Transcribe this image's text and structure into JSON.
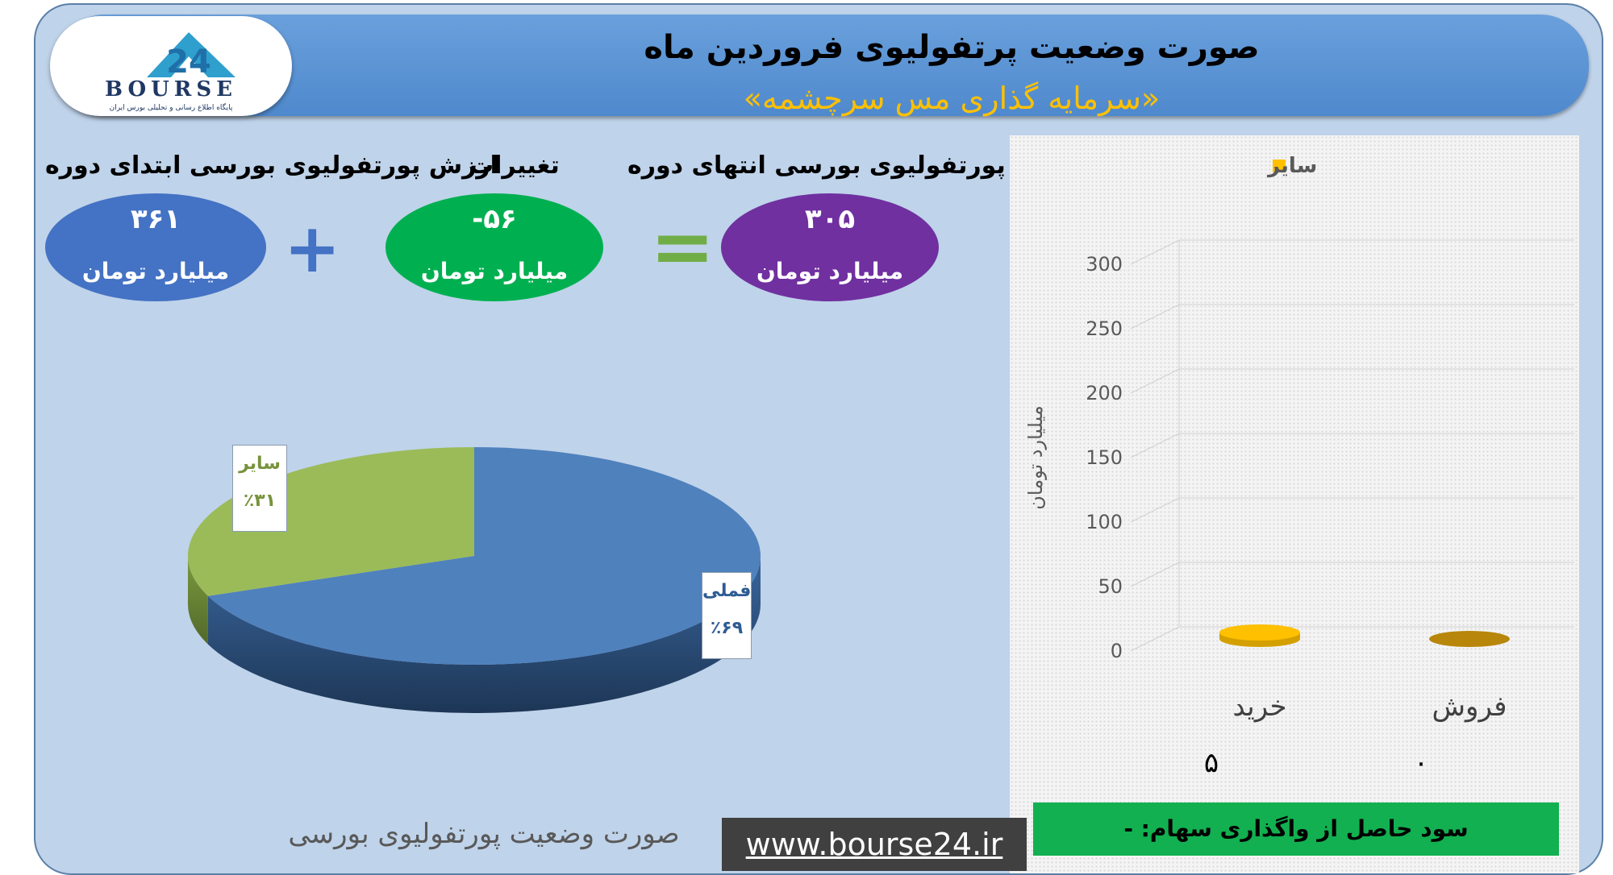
{
  "header": {
    "title": "صورت وضعیت پرتفولیوی فروردین ماه",
    "subtitle": "«سرمایه گذاری مس سرچشمه»"
  },
  "logo": {
    "brand": "BOURSE",
    "mark": "24",
    "tagline": "پایگاه اطلاع رسانی و تحلیلی بورس ایران"
  },
  "summary": {
    "start_label": "ارزش پورتفولیوی بورسی ابتدای دوره",
    "start_value": "۳۶۱",
    "change_label": "تغییرات",
    "change_value": "-۵۶",
    "end_label": "ارزش پورتفولیوی بورسی انتهای دوره",
    "end_value": "۳۰۵",
    "unit": "میلیارد تومان",
    "plus_symbol": "+",
    "equals_symbol": "=",
    "colors": {
      "start": "#4472c4",
      "change": "#00b050",
      "end": "#7030a0"
    }
  },
  "chart_data": [
    {
      "type": "pie",
      "title": "صورت وضعیت پورتفولیوی بورسی",
      "slices": [
        {
          "name": "فملی",
          "value": 69,
          "label": "٪۶۹",
          "color": "#4f81bd"
        },
        {
          "name": "سایر",
          "value": 31,
          "label": "٪۳۱",
          "color": "#9bbb59"
        }
      ]
    },
    {
      "type": "bar",
      "categories": [
        "خرید",
        "فروش"
      ],
      "series": [
        {
          "name": "سایر",
          "values": [
            5,
            0
          ],
          "color": "#ffc000"
        }
      ],
      "value_labels": [
        "۵",
        "۰"
      ],
      "ylabel": "میلیارد تومان",
      "ylim": [
        0,
        300
      ],
      "yticks": [
        "0",
        "50",
        "100",
        "150",
        "200",
        "250",
        "300"
      ],
      "grid": true,
      "legend": "top"
    }
  ],
  "footer": {
    "url": "www.bourse24.ir",
    "profit_text": "سود حاصل از واگذاری سهام: -"
  }
}
